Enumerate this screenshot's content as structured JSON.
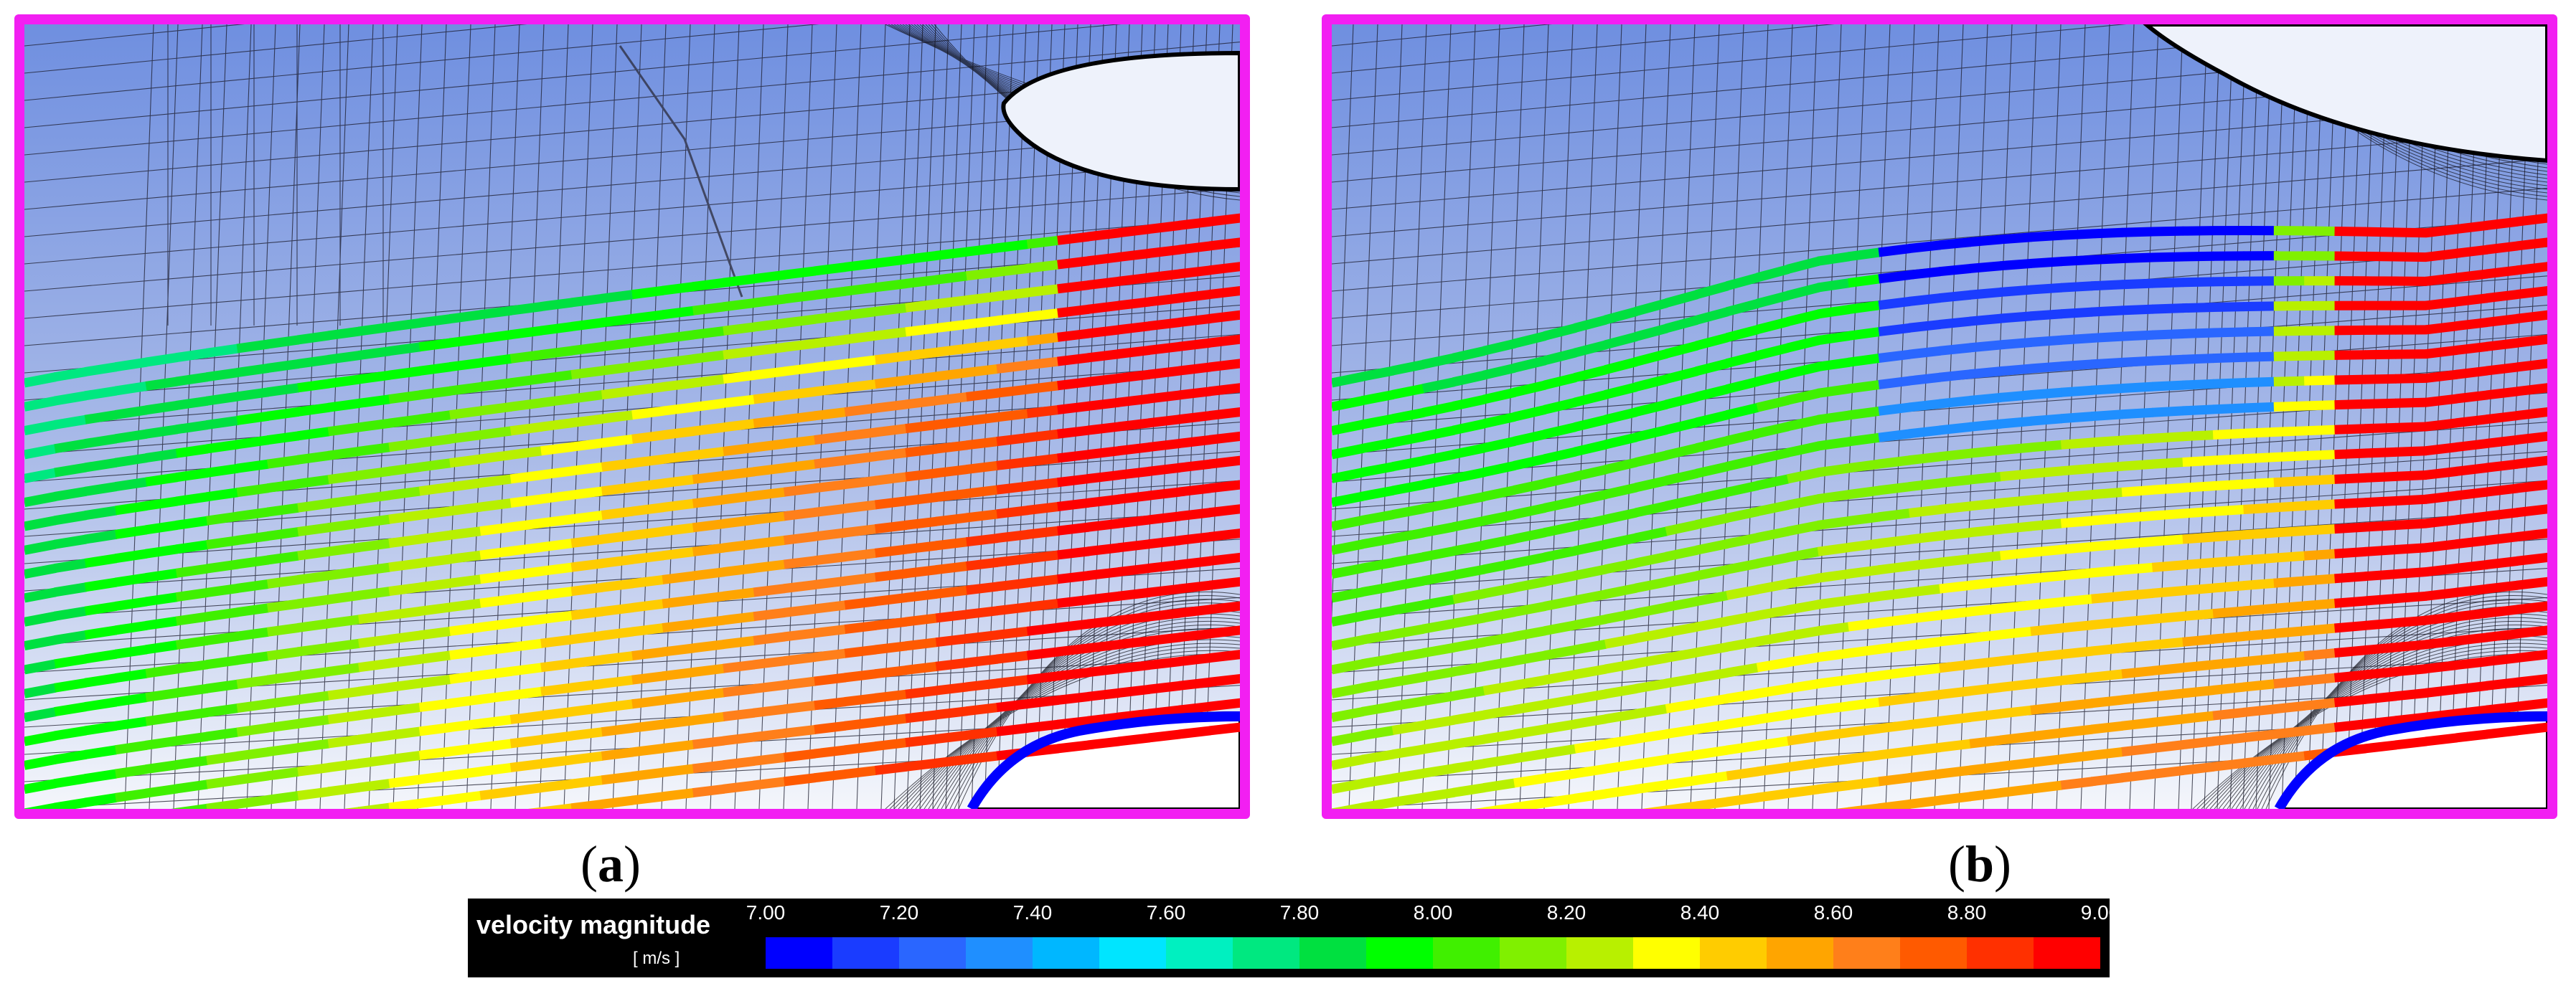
{
  "panels": [
    {
      "id": "a",
      "caption_open": "(",
      "caption_letter": "a",
      "caption_close": ")"
    },
    {
      "id": "b",
      "caption_open": "(",
      "caption_letter": "b",
      "caption_close": ")"
    }
  ],
  "legend": {
    "title": "velocity magnitude",
    "unit": "[ m/s ]",
    "ticks": [
      "7.00",
      "7.20",
      "7.40",
      "7.60",
      "7.80",
      "8.00",
      "8.20",
      "8.40",
      "8.60",
      "8.80",
      "9.00"
    ],
    "min": 7.0,
    "max": 9.0,
    "colors": [
      "#0000ff",
      "#1a3cff",
      "#2a66ff",
      "#1f8fff",
      "#00b7ff",
      "#00e5ff",
      "#00f0c0",
      "#00e880",
      "#00e040",
      "#00ff00",
      "#40f000",
      "#80f000",
      "#b8f000",
      "#ffff00",
      "#ffcc00",
      "#ffa500",
      "#ff7f1a",
      "#ff5a00",
      "#ff3000",
      "#ff0000"
    ]
  },
  "colors": {
    "frame": "#f21ff2",
    "mesh": "#1a1a2a",
    "sky_top": "#6f8fe0",
    "sky_bottom": "#f4f6fb"
  }
}
